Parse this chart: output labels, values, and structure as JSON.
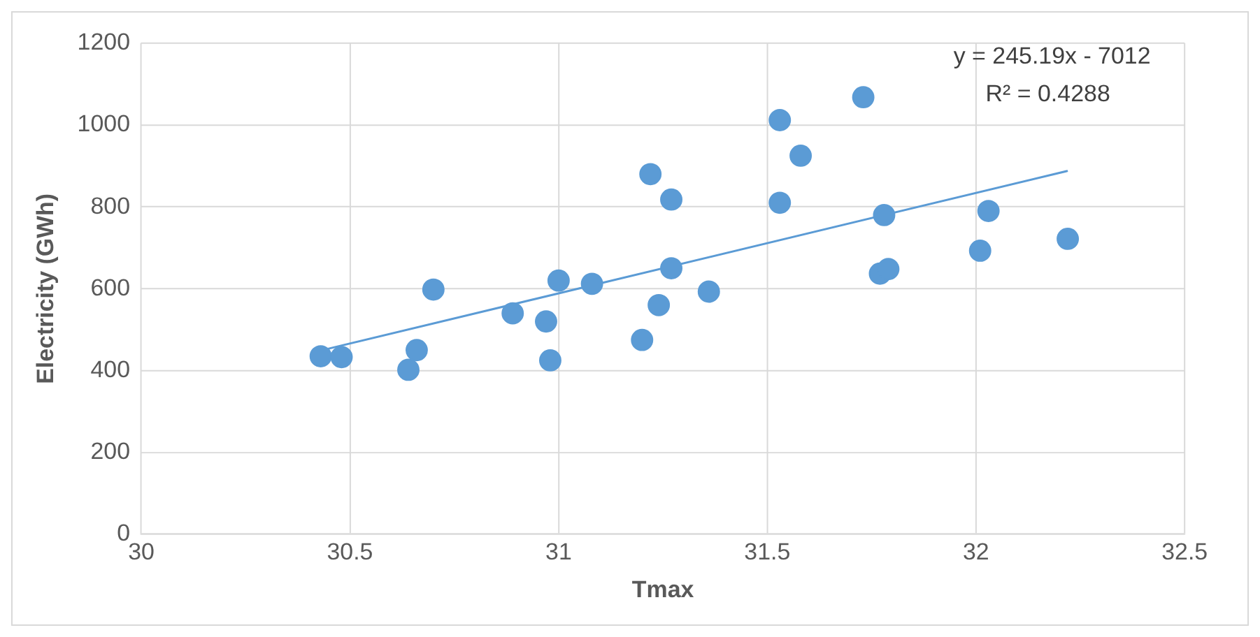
{
  "chart_data": {
    "type": "scatter",
    "xlabel": "Tmax",
    "ylabel": "Electricity (GWh)",
    "xlim": [
      30,
      32.5
    ],
    "xticks": [
      30,
      30.5,
      31,
      31.5,
      32,
      32.5
    ],
    "ylim": [
      0,
      1200
    ],
    "yticks": [
      0,
      200,
      400,
      600,
      800,
      1000,
      1200
    ],
    "grid": true,
    "legend": false,
    "annotations": [
      "y = 245.19x - 7012",
      "R² = 0.4288"
    ],
    "series": [
      {
        "marker": "circle",
        "color": "#5b9bd5",
        "x": [
          30.43,
          30.48,
          30.64,
          30.66,
          30.7,
          30.89,
          30.97,
          30.98,
          31,
          31.08,
          31.2,
          31.22,
          31.24,
          31.27,
          31.27,
          31.36,
          31.53,
          31.53,
          31.58,
          31.73,
          31.77,
          31.78,
          31.79,
          32.01,
          32.03,
          32.22
        ],
        "values": [
          435,
          433,
          402,
          450,
          598,
          540,
          520,
          425,
          620,
          612,
          475,
          880,
          560,
          818,
          650,
          593,
          1012,
          810,
          925,
          1068,
          637,
          780,
          648,
          693,
          790,
          722
        ]
      },
      {
        "type": "line",
        "marker": "none",
        "color": "#5b9bd5",
        "x": [
          30.43,
          32.22
        ],
        "values": [
          449,
          888
        ]
      }
    ]
  }
}
